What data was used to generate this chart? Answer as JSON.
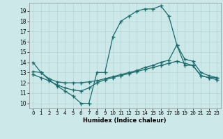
{
  "xlabel": "Humidex (Indice chaleur)",
  "bg_color": "#cce8e8",
  "line_color": "#1a6b6b",
  "grid_color": "#b8d8d8",
  "xlim": [
    -0.5,
    23.5
  ],
  "ylim": [
    9.5,
    19.8
  ],
  "xticks": [
    0,
    1,
    2,
    3,
    4,
    5,
    6,
    7,
    8,
    9,
    10,
    11,
    12,
    13,
    14,
    15,
    16,
    17,
    18,
    19,
    20,
    21,
    22,
    23
  ],
  "yticks": [
    10,
    11,
    12,
    13,
    14,
    15,
    16,
    17,
    18,
    19
  ],
  "line1_x": [
    0,
    1,
    2,
    3,
    4,
    5,
    6,
    7,
    8,
    9,
    10,
    11,
    12,
    13,
    14,
    15,
    16,
    17,
    18,
    19,
    20,
    21,
    22,
    23
  ],
  "line1_y": [
    14,
    13,
    12.3,
    11.7,
    11.2,
    10.7,
    10,
    10,
    13,
    13,
    16.5,
    18,
    18.5,
    19,
    19.2,
    19.2,
    19.5,
    18.5,
    15.7,
    13.7,
    13.7,
    12.7,
    12.5,
    12.5
  ],
  "line2_x": [
    0,
    1,
    2,
    3,
    4,
    5,
    6,
    7,
    8,
    9,
    10,
    11,
    12,
    13,
    14,
    15,
    16,
    17,
    18,
    19,
    20,
    21,
    22,
    23
  ],
  "line2_y": [
    13.1,
    13.0,
    12.4,
    12.1,
    12.0,
    12.0,
    12.0,
    12.1,
    12.2,
    12.4,
    12.6,
    12.8,
    13.0,
    13.2,
    13.5,
    13.7,
    14.0,
    14.2,
    15.7,
    14.3,
    14.1,
    13.0,
    12.7,
    12.5
  ],
  "line3_x": [
    0,
    1,
    2,
    3,
    4,
    5,
    6,
    7,
    8,
    9,
    10,
    11,
    12,
    13,
    14,
    15,
    16,
    17,
    18,
    19,
    20,
    21,
    22,
    23
  ],
  "line3_y": [
    12.8,
    12.5,
    12.2,
    11.8,
    11.5,
    11.3,
    11.2,
    11.5,
    12.0,
    12.3,
    12.5,
    12.7,
    12.9,
    13.1,
    13.3,
    13.5,
    13.7,
    13.9,
    14.1,
    13.9,
    13.7,
    12.7,
    12.5,
    12.3
  ]
}
